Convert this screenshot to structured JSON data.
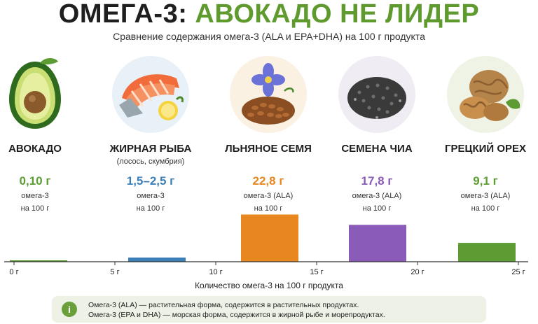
{
  "title_part1": "ОМЕГА-3:",
  "title_part2": "АВОКАДО НЕ ЛИДЕР",
  "subtitle": "Сравнение содержания омега-3 (ALA и EPA+DHA) на 100 г продукта",
  "products": [
    {
      "name": "АВОКАДО",
      "note": "",
      "value": "0,10 г",
      "unit1": "омега-3",
      "unit2": "на 100 г",
      "color": "#5c9c32",
      "icon": "avocado-icon"
    },
    {
      "name": "ЖИРНАЯ РЫБА",
      "note": "(лосось, скумбрия)",
      "value": "1,5–2,5 г",
      "unit1": "омега-3",
      "unit2": "на 100 г",
      "color": "#3a7fb8",
      "icon": "salmon-icon"
    },
    {
      "name": "ЛЬНЯНОЕ СЕМЯ",
      "note": "",
      "value": "22,8 г",
      "unit1": "омега-3 (ALA)",
      "unit2": "на 100 г",
      "color": "#e8861f",
      "icon": "flax-seed-icon"
    },
    {
      "name": "СЕМЕНА ЧИА",
      "note": "",
      "value": "17,8 г",
      "unit1": "омега-3 (ALA)",
      "unit2": "на 100 г",
      "color": "#8a5bb8",
      "icon": "chia-seed-icon"
    },
    {
      "name": "ГРЕЦКИЙ ОРЕХ",
      "note": "",
      "value": "9,1 г",
      "unit1": "омега-3 (ALA)",
      "unit2": "на 100 г",
      "color": "#5c9c32",
      "icon": "walnut-icon"
    }
  ],
  "info_icon": "info-icon",
  "info_line1": "Омега-3 (ALA) — растительная форма, содержится в растительных продуктах.",
  "info_line2": "Омега-3 (EPA и DHA) — морская форма, содержится в жирной рыбе и морепродуктах.",
  "chart_data": {
    "type": "bar",
    "categories": [
      "АВОКАДО",
      "ЖИРНАЯ РЫБА",
      "ЛЬНЯНОЕ СЕМЯ",
      "СЕМЕНА ЧИА",
      "ГРЕЦКИЙ ОРЕХ"
    ],
    "values": [
      0.1,
      2.0,
      22.8,
      17.8,
      9.1
    ],
    "colors": [
      "#5c9c32",
      "#3a7fb8",
      "#e8861f",
      "#8a5bb8",
      "#5c9c32"
    ],
    "xlabel": "Количество омега-3 на 100 г продукта",
    "ylabel": "",
    "xticks": [
      "0 г",
      "5 г",
      "10 г",
      "15 г",
      "20 г",
      "25 г"
    ],
    "xlim": [
      0,
      25
    ],
    "ylim": [
      0,
      25
    ],
    "grid": false,
    "legend": "none"
  }
}
